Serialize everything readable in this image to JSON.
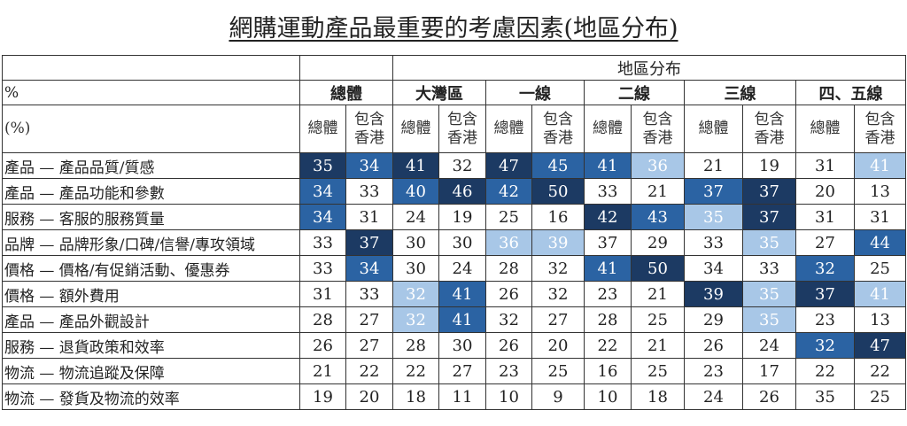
{
  "chart_data": {
    "type": "table",
    "title": "網購運動產品最重要的考慮因素(地區分布)",
    "group_header": "地區分布",
    "corner_labels": [
      "%",
      "(%)"
    ],
    "groups": [
      "總體",
      "大灣區",
      "一線",
      "二線",
      "三線",
      "四、五線"
    ],
    "subcolumns": [
      "總體",
      "包含香港"
    ],
    "shade_colors": {
      "d": "#1c3a63",
      "m": "#2b63a3",
      "l": "#a8c7e7"
    },
    "rows": [
      {
        "label": "產品 — 產品品質/質感",
        "values": [
          35,
          34,
          41,
          32,
          47,
          45,
          41,
          36,
          21,
          19,
          31,
          41
        ],
        "shade": [
          "d",
          "m",
          "d",
          "",
          "d",
          "m",
          "m",
          "l",
          "",
          "",
          "",
          "l"
        ]
      },
      {
        "label": "產品 — 產品功能和參數",
        "values": [
          34,
          33,
          40,
          46,
          42,
          50,
          33,
          21,
          37,
          37,
          20,
          13
        ],
        "shade": [
          "m",
          "",
          "m",
          "d",
          "m",
          "d",
          "",
          "",
          "m",
          "d",
          "",
          ""
        ]
      },
      {
        "label": "服務 — 客服的服務質量",
        "values": [
          34,
          31,
          24,
          19,
          25,
          16,
          42,
          43,
          35,
          37,
          31,
          31
        ],
        "shade": [
          "m",
          "",
          "",
          "",
          "",
          "",
          "d",
          "m",
          "l",
          "d",
          "",
          ""
        ]
      },
      {
        "label": "品牌 — 品牌形象/口碑/信譽/專攻領域",
        "values": [
          33,
          37,
          30,
          30,
          36,
          39,
          37,
          29,
          33,
          35,
          27,
          44
        ],
        "shade": [
          "",
          "d",
          "",
          "",
          "l",
          "l",
          "",
          "",
          "",
          "l",
          "",
          "m"
        ]
      },
      {
        "label": "價格 — 價格/有促銷活動、優惠券",
        "values": [
          33,
          34,
          30,
          24,
          28,
          32,
          41,
          50,
          34,
          33,
          32,
          25
        ],
        "shade": [
          "",
          "m",
          "",
          "",
          "",
          "",
          "m",
          "d",
          "",
          "",
          "m",
          ""
        ]
      },
      {
        "label": "價格 — 額外費用",
        "values": [
          31,
          33,
          32,
          41,
          26,
          32,
          23,
          21,
          39,
          35,
          37,
          41
        ],
        "shade": [
          "",
          "",
          "l",
          "m",
          "",
          "",
          "",
          "",
          "d",
          "l",
          "d",
          "l"
        ]
      },
      {
        "label": "產品 — 產品外觀設計",
        "values": [
          28,
          27,
          32,
          41,
          32,
          27,
          28,
          25,
          29,
          35,
          23,
          13
        ],
        "shade": [
          "",
          "",
          "l",
          "m",
          "",
          "",
          "",
          "",
          "",
          "l",
          "",
          ""
        ]
      },
      {
        "label": "服務 — 退貨政策和效率",
        "values": [
          26,
          27,
          28,
          30,
          26,
          20,
          22,
          21,
          26,
          24,
          32,
          47
        ],
        "shade": [
          "",
          "",
          "",
          "",
          "",
          "",
          "",
          "",
          "",
          "",
          "m",
          "d"
        ]
      },
      {
        "label": "物流 — 物流追蹤及保障",
        "values": [
          21,
          22,
          22,
          27,
          23,
          25,
          16,
          25,
          23,
          17,
          22,
          22
        ],
        "shade": [
          "",
          "",
          "",
          "",
          "",
          "",
          "",
          "",
          "",
          "",
          "",
          ""
        ]
      },
      {
        "label": "物流 — 發貨及物流的效率",
        "values": [
          19,
          20,
          18,
          11,
          10,
          9,
          10,
          18,
          24,
          26,
          35,
          25
        ],
        "shade": [
          "",
          "",
          "",
          "",
          "",
          "",
          "",
          "",
          "",
          "",
          "",
          ""
        ]
      }
    ]
  }
}
